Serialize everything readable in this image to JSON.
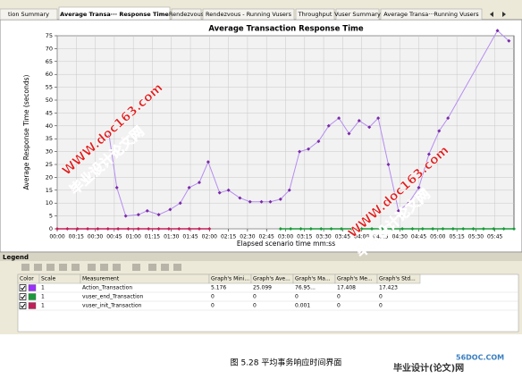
{
  "tabs": [
    "tion Summary",
    "Average Transa··· Response Time",
    "Rendezvous",
    "Rendezvous - Running Vusers",
    "Throughput",
    "Vuser Summary",
    "Average Transa···Running Vusers"
  ],
  "chart_data": {
    "type": "line",
    "title": "Average Transaction Response Time",
    "x_label": "Elapsed scenario time mm:ss",
    "y_label": "Average Response Time (seconds)",
    "xlim": [
      0,
      360
    ],
    "ylim": [
      0,
      75
    ],
    "yticks": [
      0,
      5,
      10,
      15,
      20,
      25,
      30,
      35,
      40,
      45,
      50,
      55,
      60,
      65,
      70,
      75
    ],
    "xticks": [
      {
        "value": 0,
        "label": "00:00"
      },
      {
        "value": 15,
        "label": "00:15"
      },
      {
        "value": 30,
        "label": "00:30"
      },
      {
        "value": 45,
        "label": "00:45"
      },
      {
        "value": 60,
        "label": "01:00"
      },
      {
        "value": 75,
        "label": "01:15"
      },
      {
        "value": 90,
        "label": "01:30"
      },
      {
        "value": 105,
        "label": "01:45"
      },
      {
        "value": 120,
        "label": "02:00"
      },
      {
        "value": 135,
        "label": "02:15"
      },
      {
        "value": 150,
        "label": "02:30"
      },
      {
        "value": 165,
        "label": "02:45"
      },
      {
        "value": 180,
        "label": "03:00"
      },
      {
        "value": 195,
        "label": "03:15"
      },
      {
        "value": 210,
        "label": "03:30"
      },
      {
        "value": 225,
        "label": "03:45"
      },
      {
        "value": 240,
        "label": "04:00"
      },
      {
        "value": 255,
        "label": "04:15"
      },
      {
        "value": 270,
        "label": "04:30"
      },
      {
        "value": 285,
        "label": "04:45"
      },
      {
        "value": 300,
        "label": "05:00"
      },
      {
        "value": 315,
        "label": "05:15"
      },
      {
        "value": 330,
        "label": "05:30"
      },
      {
        "value": 345,
        "label": "05:45"
      }
    ],
    "grid": true,
    "series": [
      {
        "name": "Action_Transaction",
        "color": "#b58cf0",
        "marker_color": "#7a2aa8",
        "x": [
          41,
          47,
          54,
          64,
          71,
          80,
          89,
          97,
          104,
          112,
          119,
          128,
          135,
          144,
          152,
          161,
          168,
          176,
          183,
          191,
          198,
          206,
          214,
          222,
          230,
          238,
          246,
          253,
          261,
          269,
          277,
          285,
          293,
          301,
          308,
          347,
          356
        ],
        "values": [
          36,
          16,
          5,
          5.5,
          7,
          5.5,
          7.5,
          10,
          16,
          18,
          26,
          14,
          15,
          12,
          10.5,
          10.5,
          10.5,
          11.5,
          15,
          30,
          31,
          34,
          40,
          43,
          37,
          42,
          39.5,
          43,
          25,
          7,
          10,
          16,
          29,
          38,
          43,
          77,
          73
        ]
      },
      {
        "name": "vuser_end_Transaction",
        "color": "#1a9a3a",
        "marker_color": "#1a9a3a",
        "x": [
          176,
          184,
          192,
          200,
          208,
          216,
          224,
          232,
          240,
          248,
          256,
          264,
          272,
          280,
          288,
          296,
          304,
          312,
          320,
          328,
          336,
          344,
          352,
          360
        ],
        "values": [
          0,
          0,
          0,
          0,
          0,
          0,
          0,
          0,
          0,
          0,
          0,
          0,
          0,
          0,
          0,
          0,
          0,
          0,
          0,
          0,
          0,
          0,
          0,
          0
        ]
      },
      {
        "name": "vuser_init_Transaction",
        "color": "#c0205a",
        "marker_color": "#c0205a",
        "x": [
          0,
          8,
          16,
          24,
          32,
          40,
          48,
          56,
          64,
          72,
          80,
          88,
          96,
          104,
          112,
          120
        ],
        "values": [
          0,
          0,
          0,
          0,
          0,
          0,
          0,
          0,
          0,
          0,
          0,
          0,
          0,
          0,
          0,
          0
        ]
      }
    ]
  },
  "legend": {
    "title": "Legend",
    "columns": [
      "Color",
      "Scale",
      "Measurement",
      "Graph's Mini...",
      "Graph's Ave...",
      "Graph's Ma...",
      "Graph's Me...",
      "Graph's Std..."
    ],
    "rows": [
      {
        "color": "#9b30ff",
        "cells": [
          "1",
          "Action_Transaction",
          "5.176",
          "25.099",
          "76.95...",
          "17.408",
          "17.423"
        ]
      },
      {
        "color": "#1a9a3a",
        "cells": [
          "1",
          "vuser_end_Transaction",
          "0",
          "0",
          "0",
          "0",
          "0"
        ]
      },
      {
        "color": "#c0205a",
        "cells": [
          "1",
          "vuser_init_Transaction",
          "0",
          "0",
          "0.001",
          "0",
          "0"
        ]
      }
    ]
  },
  "watermark": {
    "name": "毕业设计论文网",
    "url": "WWW.doc163.com"
  },
  "caption": "图 5.28 平均事务响应时间界面",
  "logo": {
    "site": "56DOC.COM",
    "name": "毕业设计(论文)网"
  }
}
